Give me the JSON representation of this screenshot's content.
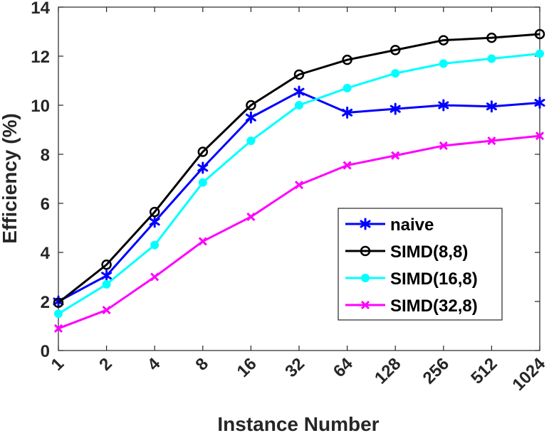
{
  "chart_data": {
    "type": "line",
    "xlabel": "Instance Number",
    "ylabel": "Efficiency (%)",
    "categories": [
      "1",
      "2",
      "4",
      "8",
      "16",
      "32",
      "64",
      "128",
      "256",
      "512",
      "1024"
    ],
    "ylim": [
      0,
      14
    ],
    "yticks": [
      "0",
      "2",
      "4",
      "6",
      "8",
      "10",
      "12",
      "14"
    ],
    "grid": false,
    "legend_position": "lower-right",
    "series": [
      {
        "name": "naive",
        "color": "#0000ff",
        "marker": "star",
        "values": [
          2.0,
          3.05,
          5.25,
          7.45,
          9.5,
          10.55,
          9.7,
          9.85,
          10.0,
          9.95,
          10.1
        ]
      },
      {
        "name": "SIMD(8,8)",
        "color": "#000000",
        "marker": "circle-open",
        "values": [
          1.95,
          3.5,
          5.65,
          8.1,
          10.0,
          11.25,
          11.85,
          12.25,
          12.65,
          12.75,
          12.9
        ]
      },
      {
        "name": "SIMD(16,8)",
        "color": "#00ffff",
        "marker": "circle-filled",
        "values": [
          1.5,
          2.7,
          4.3,
          6.85,
          8.55,
          10.0,
          10.7,
          11.3,
          11.7,
          11.9,
          12.1
        ]
      },
      {
        "name": "SIMD(32,8)",
        "color": "#ff00ff",
        "marker": "x",
        "values": [
          0.9,
          1.65,
          3.0,
          4.45,
          5.45,
          6.75,
          7.55,
          7.95,
          8.35,
          8.55,
          8.75
        ]
      }
    ]
  }
}
